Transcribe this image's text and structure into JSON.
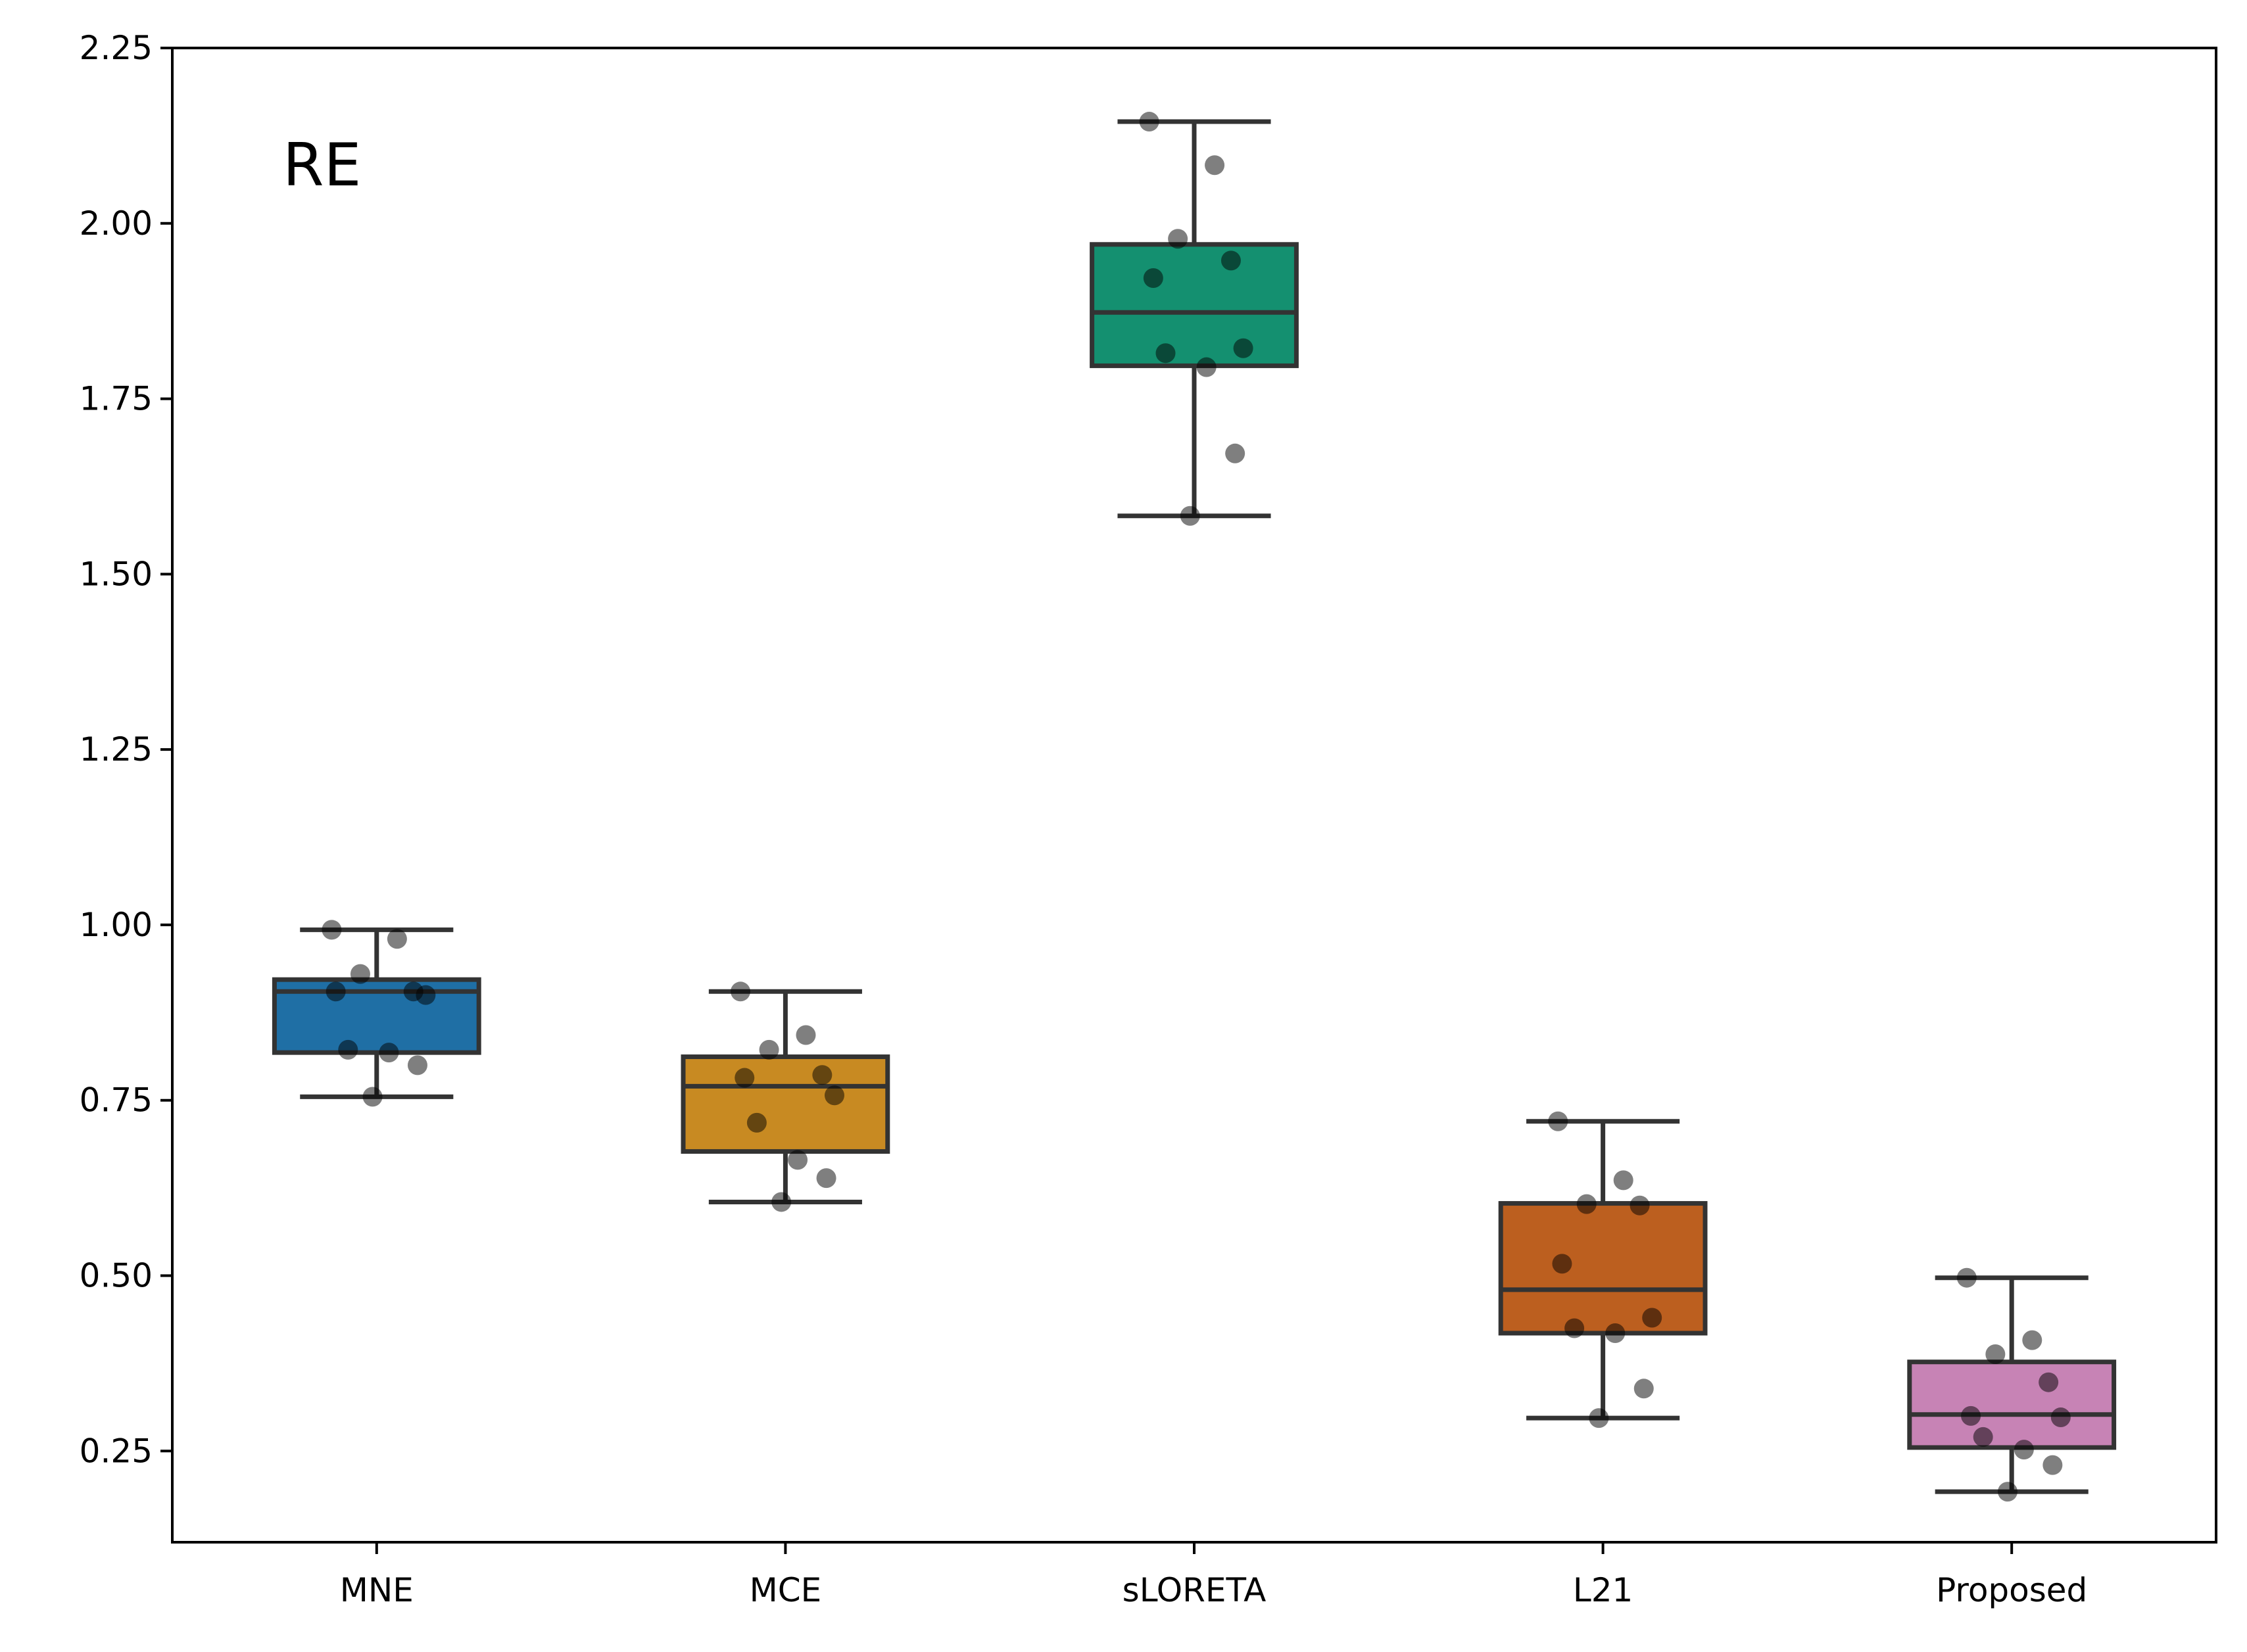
{
  "chart_data": {
    "type": "box",
    "title": "",
    "xlabel": "",
    "ylabel": "",
    "annotation": "RE",
    "ylim": [
      0.12,
      2.25
    ],
    "yticks": [
      0.25,
      0.5,
      0.75,
      1.0,
      1.25,
      1.5,
      1.75,
      2.0,
      2.25
    ],
    "ytick_labels": [
      "0.25",
      "0.50",
      "0.75",
      "1.00",
      "1.25",
      "1.50",
      "1.75",
      "2.00",
      "2.25"
    ],
    "grid": false,
    "categories": [
      "MNE",
      "MCE",
      "sLORETA",
      "L21",
      "Proposed"
    ],
    "colors": [
      "#1f6fa5",
      "#c88a22",
      "#149070",
      "#bc5f1f",
      "#c783b5"
    ],
    "boxes": [
      {
        "name": "MNE",
        "whisker_low": 0.755,
        "q1": 0.818,
        "median": 0.905,
        "q3": 0.922,
        "whisker_high": 0.993,
        "points": [
          0.993,
          0.98,
          0.93,
          0.905,
          0.905,
          0.9,
          0.822,
          0.818,
          0.8,
          0.755
        ]
      },
      {
        "name": "MCE",
        "whisker_low": 0.605,
        "q1": 0.677,
        "median": 0.77,
        "q3": 0.812,
        "whisker_high": 0.905,
        "points": [
          0.905,
          0.843,
          0.822,
          0.786,
          0.782,
          0.757,
          0.718,
          0.665,
          0.639,
          0.605
        ]
      },
      {
        "name": "sLORETA",
        "whisker_low": 1.583,
        "q1": 1.797,
        "median": 1.873,
        "q3": 1.97,
        "whisker_high": 2.145,
        "points": [
          2.145,
          2.083,
          1.978,
          1.947,
          1.922,
          1.822,
          1.815,
          1.795,
          1.672,
          1.583
        ]
      },
      {
        "name": "L21",
        "whisker_low": 0.297,
        "q1": 0.418,
        "median": 0.48,
        "q3": 0.603,
        "whisker_high": 0.72,
        "points": [
          0.72,
          0.636,
          0.602,
          0.6,
          0.517,
          0.44,
          0.425,
          0.418,
          0.339,
          0.297
        ]
      },
      {
        "name": "Proposed",
        "whisker_low": 0.192,
        "q1": 0.255,
        "median": 0.302,
        "q3": 0.377,
        "whisker_high": 0.497,
        "points": [
          0.497,
          0.408,
          0.388,
          0.348,
          0.3,
          0.298,
          0.27,
          0.252,
          0.23,
          0.192
        ]
      }
    ]
  }
}
